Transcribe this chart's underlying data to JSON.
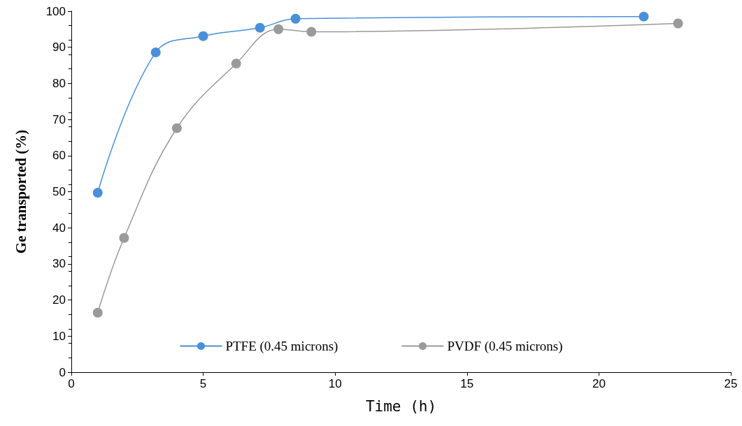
{
  "chart_data": {
    "type": "line",
    "xlabel": "Time (h)",
    "ylabel": "Ge transported (%)",
    "xlim": [
      0,
      25
    ],
    "xticks": [
      0,
      5,
      10,
      15,
      20,
      25
    ],
    "ylim": [
      0,
      100
    ],
    "yticks": [
      0,
      10,
      20,
      30,
      40,
      50,
      60,
      70,
      80,
      90,
      100
    ],
    "grid": false,
    "legend": "bottom",
    "marker": "circle",
    "line_style": "solid",
    "series": [
      {
        "name": "PTFE (0.45 microns)",
        "color": "#4a90d9",
        "x": [
          1,
          3.2,
          5,
          7.15,
          8.5,
          21.7
        ],
        "values": [
          49.7,
          88.6,
          93.1,
          95.4,
          97.9,
          98.5
        ]
      },
      {
        "name": "PVDF (0.45 microns)",
        "color": "#9a9a9a",
        "x": [
          1,
          2,
          4,
          6.25,
          7.85,
          9.1,
          23
        ],
        "values": [
          16.5,
          37.2,
          67.6,
          85.5,
          95,
          94.3,
          96.6
        ]
      }
    ]
  }
}
